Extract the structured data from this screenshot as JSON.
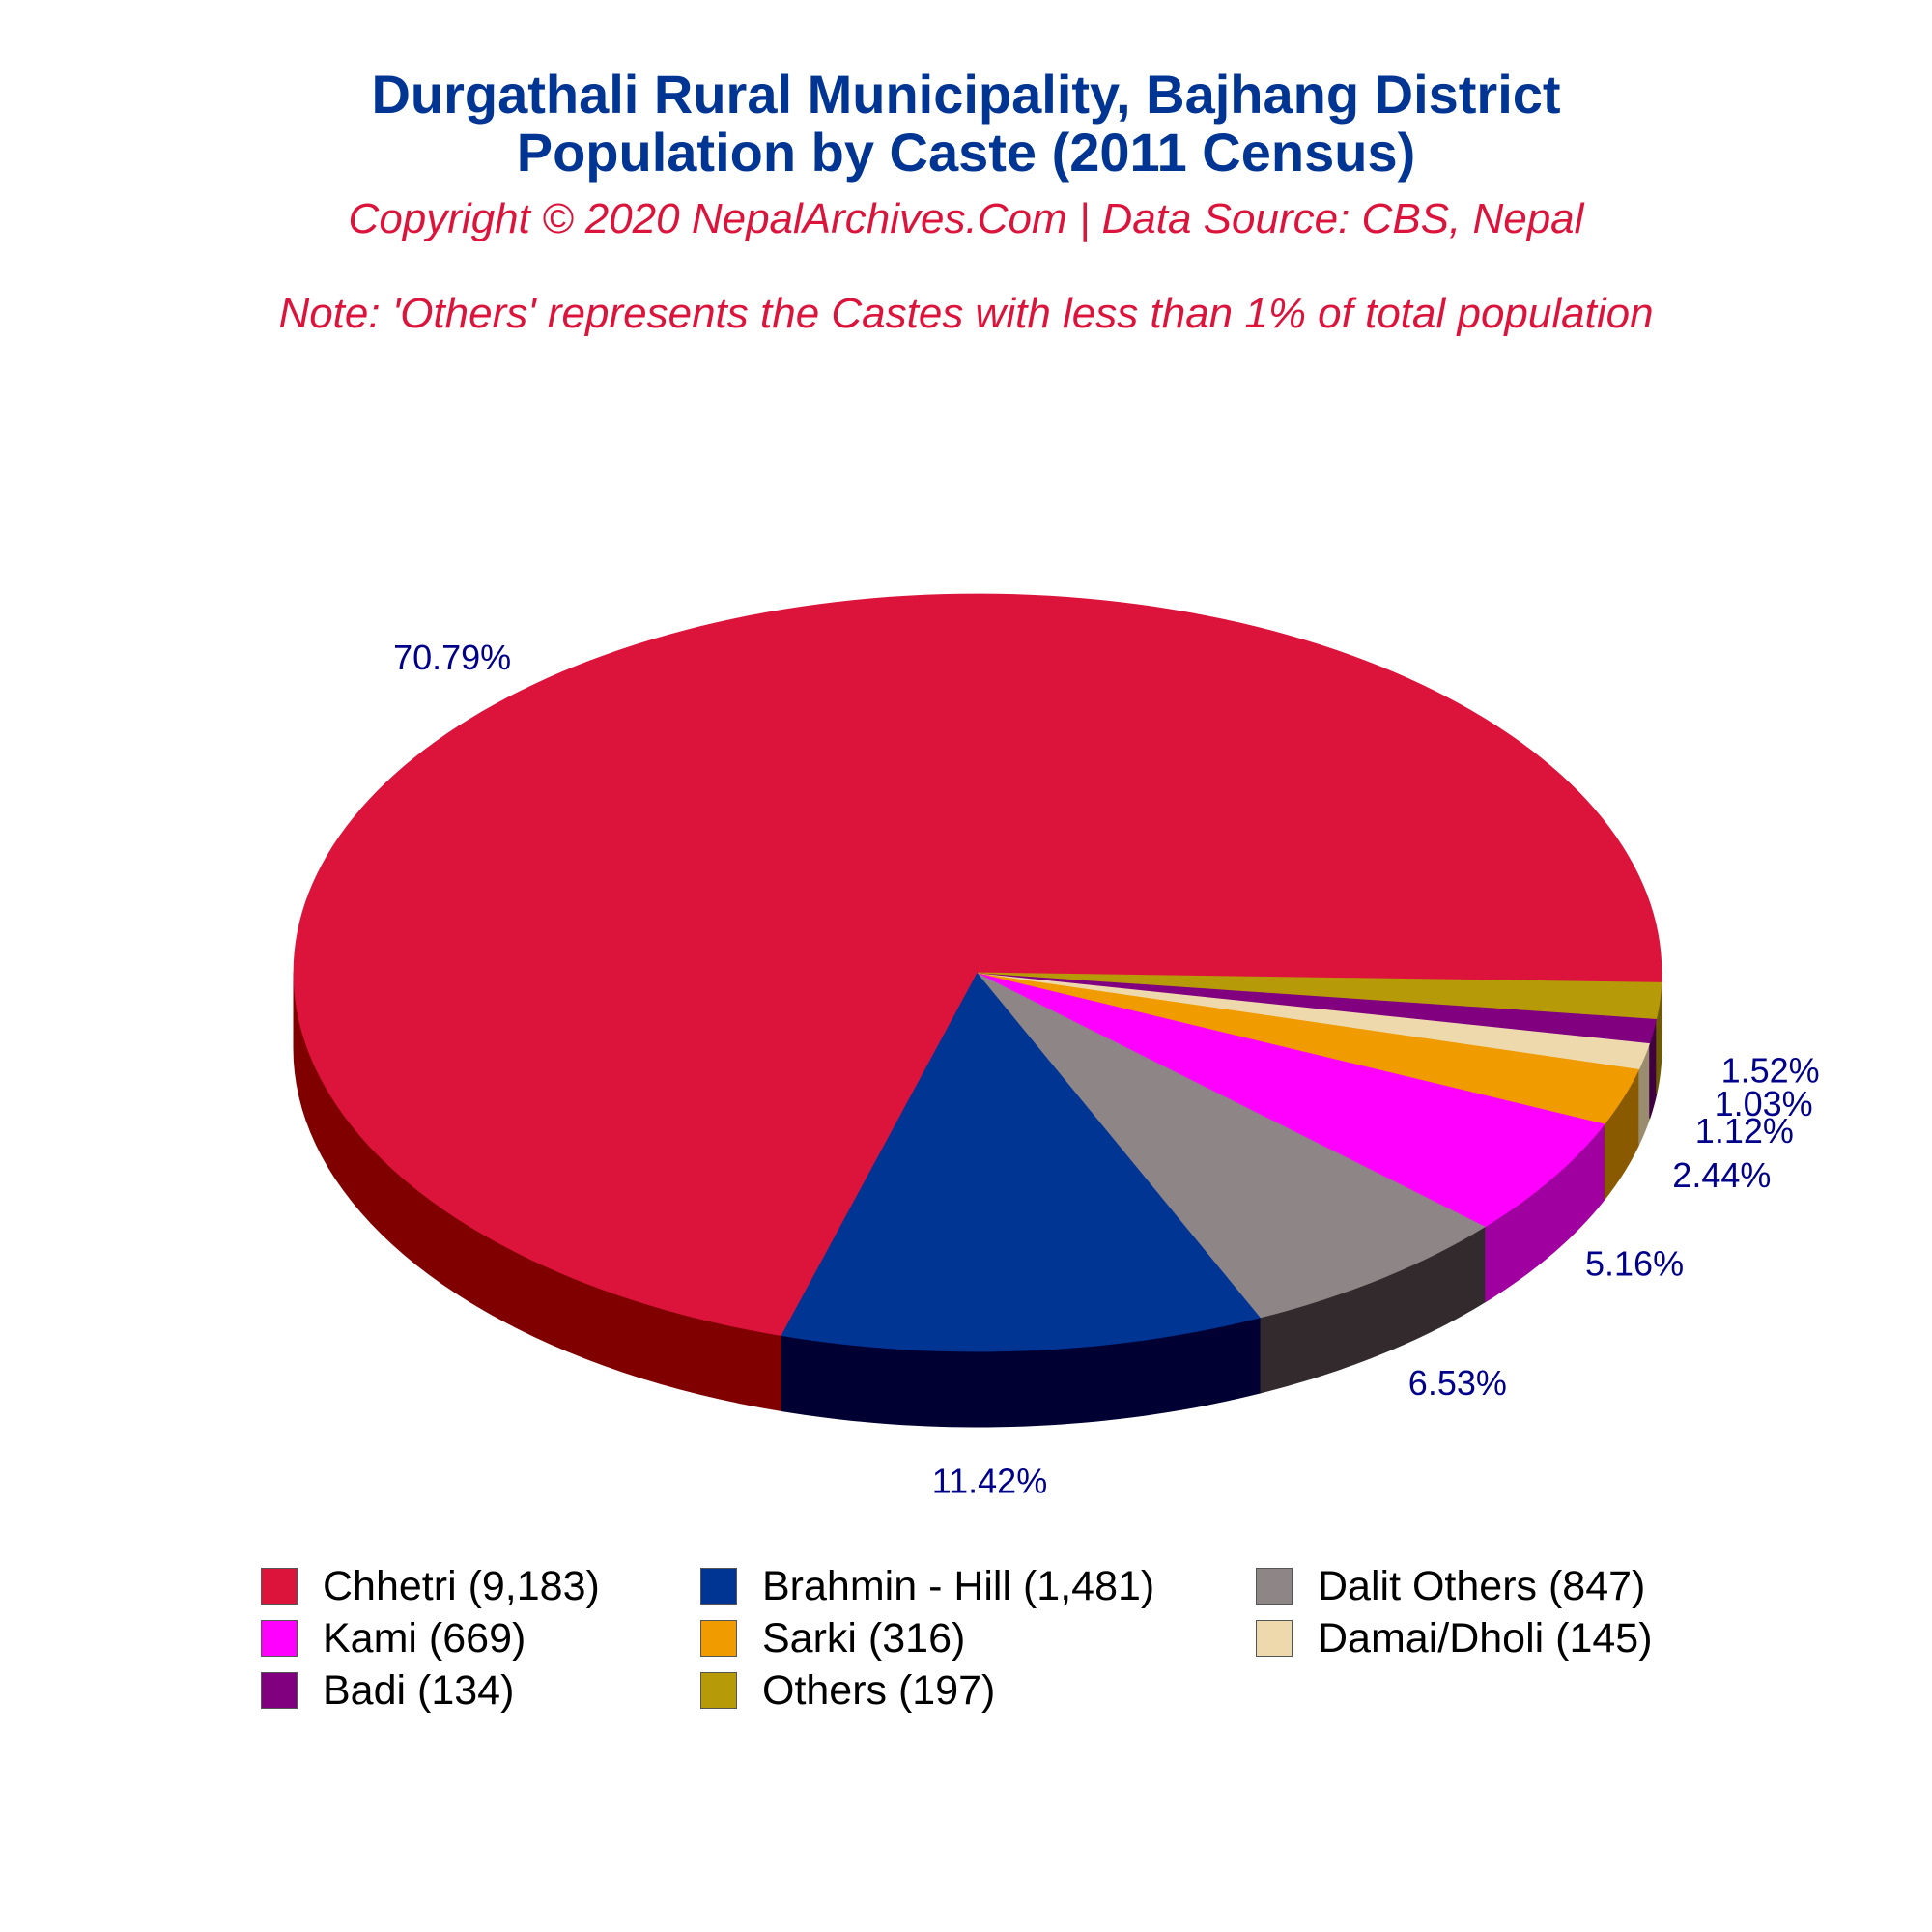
{
  "chart_data": {
    "type": "pie",
    "title": [
      "Durgathali Rural Municipality, Bajhang District",
      "Population by Caste (2011 Census)"
    ],
    "subtitle": "Copyright © 2020 NepalArchives.Com | Data Source: CBS, Nepal",
    "note": "Note: 'Others' represents the Castes with less than 1% of total population",
    "legend_position": "bottom",
    "slices": [
      {
        "name": "Chhetri",
        "value": 9183,
        "percent_label": "70.79%",
        "legend": "Chhetri (9,183)",
        "color": "#dc143c",
        "side_color": "#800000"
      },
      {
        "name": "Brahmin - Hill",
        "value": 1481,
        "percent_label": "11.42%",
        "legend": "Brahmin - Hill (1,481)",
        "color": "#003594",
        "side_color": "#000033"
      },
      {
        "name": "Dalit Others",
        "value": 847,
        "percent_label": "6.53%",
        "legend": "Dalit Others (847)",
        "color": "#8e8587",
        "side_color": "#322a2c"
      },
      {
        "name": "Kami",
        "value": 669,
        "percent_label": "5.16%",
        "legend": "Kami (669)",
        "color": "#ff00ff",
        "side_color": "#a000a0"
      },
      {
        "name": "Sarki",
        "value": 316,
        "percent_label": "2.44%",
        "legend": "Sarki (316)",
        "color": "#f09b00",
        "side_color": "#8a5a00"
      },
      {
        "name": "Damai/Dholi",
        "value": 145,
        "percent_label": "1.12%",
        "legend": "Damai/Dholi (145)",
        "color": "#eed9ad",
        "side_color": "#9a8c6e"
      },
      {
        "name": "Badi",
        "value": 134,
        "percent_label": "1.03%",
        "legend": "Badi (134)",
        "color": "#800080",
        "side_color": "#400040"
      },
      {
        "name": "Others",
        "value": 197,
        "percent_label": "1.52%",
        "legend": "Others (197)",
        "color": "#b79a08",
        "side_color": "#6e5c04"
      }
    ]
  }
}
